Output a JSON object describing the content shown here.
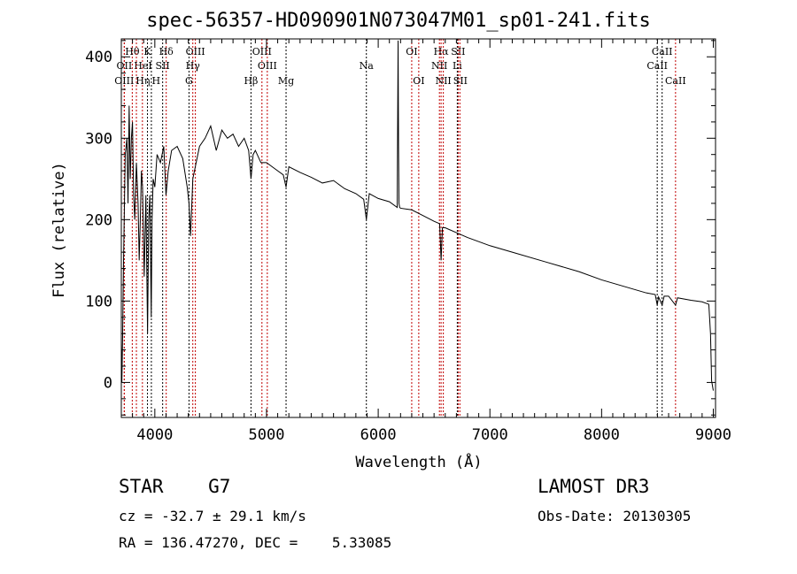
{
  "chart_data": {
    "type": "line",
    "title": "spec-56357-HD090901N073047M01_sp01-241.fits",
    "xlabel": "Wavelength (Å)",
    "ylabel": "Flux (relative)",
    "xlim": [
      3700,
      9020
    ],
    "ylim": [
      -43,
      422
    ],
    "xticks": [
      4000,
      5000,
      6000,
      7000,
      8000,
      9000
    ],
    "yticks": [
      0,
      100,
      200,
      300,
      400
    ],
    "grid": false,
    "series": [
      {
        "name": "spectrum",
        "x": [
          3700,
          3705,
          3712,
          3720,
          3735,
          3750,
          3760,
          3770,
          3780,
          3790,
          3800,
          3810,
          3820,
          3835,
          3850,
          3860,
          3870,
          3880,
          3890,
          3905,
          3920,
          3935,
          3945,
          3955,
          3968,
          3975,
          3985,
          4000,
          4020,
          4050,
          4080,
          4100,
          4120,
          4150,
          4200,
          4250,
          4290,
          4306,
          4320,
          4340,
          4370,
          4400,
          4450,
          4500,
          4550,
          4600,
          4650,
          4700,
          4750,
          4800,
          4840,
          4861,
          4880,
          4900,
          4950,
          5000,
          5050,
          5100,
          5150,
          5175,
          5200,
          5300,
          5400,
          5500,
          5600,
          5700,
          5800,
          5870,
          5894,
          5920,
          6000,
          6100,
          6170,
          6178,
          6182,
          6186,
          6192,
          6200,
          6300,
          6400,
          6500,
          6550,
          6563,
          6575,
          6600,
          6700,
          6800,
          7000,
          7200,
          7500,
          7800,
          8000,
          8200,
          8400,
          8480,
          8498,
          8510,
          8542,
          8560,
          8600,
          8662,
          8680,
          8800,
          8900,
          8960,
          8975,
          8985,
          9000
        ],
        "y": [
          50,
          0,
          60,
          150,
          280,
          300,
          220,
          340,
          250,
          300,
          320,
          230,
          200,
          270,
          220,
          150,
          200,
          260,
          240,
          130,
          230,
          60,
          200,
          230,
          80,
          200,
          250,
          240,
          280,
          270,
          290,
          230,
          260,
          285,
          290,
          275,
          240,
          220,
          180,
          250,
          270,
          290,
          300,
          315,
          285,
          310,
          300,
          305,
          290,
          300,
          285,
          250,
          280,
          285,
          270,
          270,
          265,
          260,
          255,
          240,
          265,
          258,
          252,
          245,
          248,
          238,
          232,
          225,
          200,
          232,
          226,
          222,
          215,
          420,
          290,
          220,
          215,
          214,
          212,
          205,
          198,
          195,
          150,
          190,
          190,
          184,
          178,
          168,
          160,
          148,
          136,
          126,
          118,
          110,
          108,
          95,
          105,
          95,
          106,
          106,
          95,
          104,
          101,
          99,
          96,
          60,
          2,
          -10
        ]
      }
    ],
    "lines": [
      {
        "label": "Hθ",
        "wave": 3798,
        "row": 1,
        "color": "#c00000"
      },
      {
        "label": "K",
        "wave": 3934,
        "row": 1,
        "color": "#000000"
      },
      {
        "label": "Hδ",
        "wave": 4102,
        "row": 1,
        "color": "#c00000"
      },
      {
        "label": "OIII",
        "wave": 4363,
        "row": 1,
        "color": "#c00000"
      },
      {
        "label": "OIII",
        "wave": 4959,
        "row": 1,
        "color": "#c00000"
      },
      {
        "label": "OII",
        "wave": 3727,
        "row": 2,
        "color": "#c00000"
      },
      {
        "label": "HeI",
        "wave": 3889,
        "row": 2,
        "color": "#c00000"
      },
      {
        "label": "SII",
        "wave": 4070,
        "row": 2,
        "color": "#000000"
      },
      {
        "label": "Hγ",
        "wave": 4340,
        "row": 2,
        "color": "#c00000"
      },
      {
        "label": "OIII",
        "wave": 5007,
        "row": 2,
        "color": "#c00000"
      },
      {
        "label": "OIII",
        "wave": 3726,
        "row": 3,
        "color": "#c00000"
      },
      {
        "label": "Hη",
        "wave": 3835,
        "row": 3,
        "color": "#c00000"
      },
      {
        "label": "H",
        "wave": 3969,
        "row": 3,
        "color": "#000000"
      },
      {
        "label": "G",
        "wave": 4306,
        "row": 3,
        "color": "#000000"
      },
      {
        "label": "Hβ",
        "wave": 4861,
        "row": 3,
        "color": "#000000"
      },
      {
        "label": "Mg",
        "wave": 5175,
        "row": 3,
        "color": "#000000"
      },
      {
        "label": "Na",
        "wave": 5894,
        "row": 2,
        "color": "#000000"
      },
      {
        "label": "OI",
        "wave": 6300,
        "row": 1,
        "color": "#c00000"
      },
      {
        "label": "OI",
        "wave": 6363,
        "row": 3,
        "color": "#c00000"
      },
      {
        "label": "Hα",
        "wave": 6563,
        "row": 1,
        "color": "#c00000"
      },
      {
        "label": "SII",
        "wave": 6716,
        "row": 1,
        "color": "#c00000"
      },
      {
        "label": "NII",
        "wave": 6548,
        "row": 2,
        "color": "#c00000"
      },
      {
        "label": "Li",
        "wave": 6708,
        "row": 2,
        "color": "#000000"
      },
      {
        "label": "NII",
        "wave": 6583,
        "row": 3,
        "color": "#c00000"
      },
      {
        "label": "SII",
        "wave": 6731,
        "row": 3,
        "color": "#c00000"
      },
      {
        "label": "CaII",
        "wave": 8498,
        "row": 2,
        "color": "#000000"
      },
      {
        "label": "CaII",
        "wave": 8542,
        "row": 1,
        "color": "#000000"
      },
      {
        "label": "CaII",
        "wave": 8662,
        "row": 3,
        "color": "#c00000"
      }
    ]
  },
  "info": {
    "class": "STAR    G7",
    "survey": "LAMOST DR3",
    "cz": "cz = -32.7 ± 29.1 km/s",
    "obsdate": "Obs-Date: 20130305",
    "radec": "RA = 136.47270, DEC =    5.33085"
  }
}
